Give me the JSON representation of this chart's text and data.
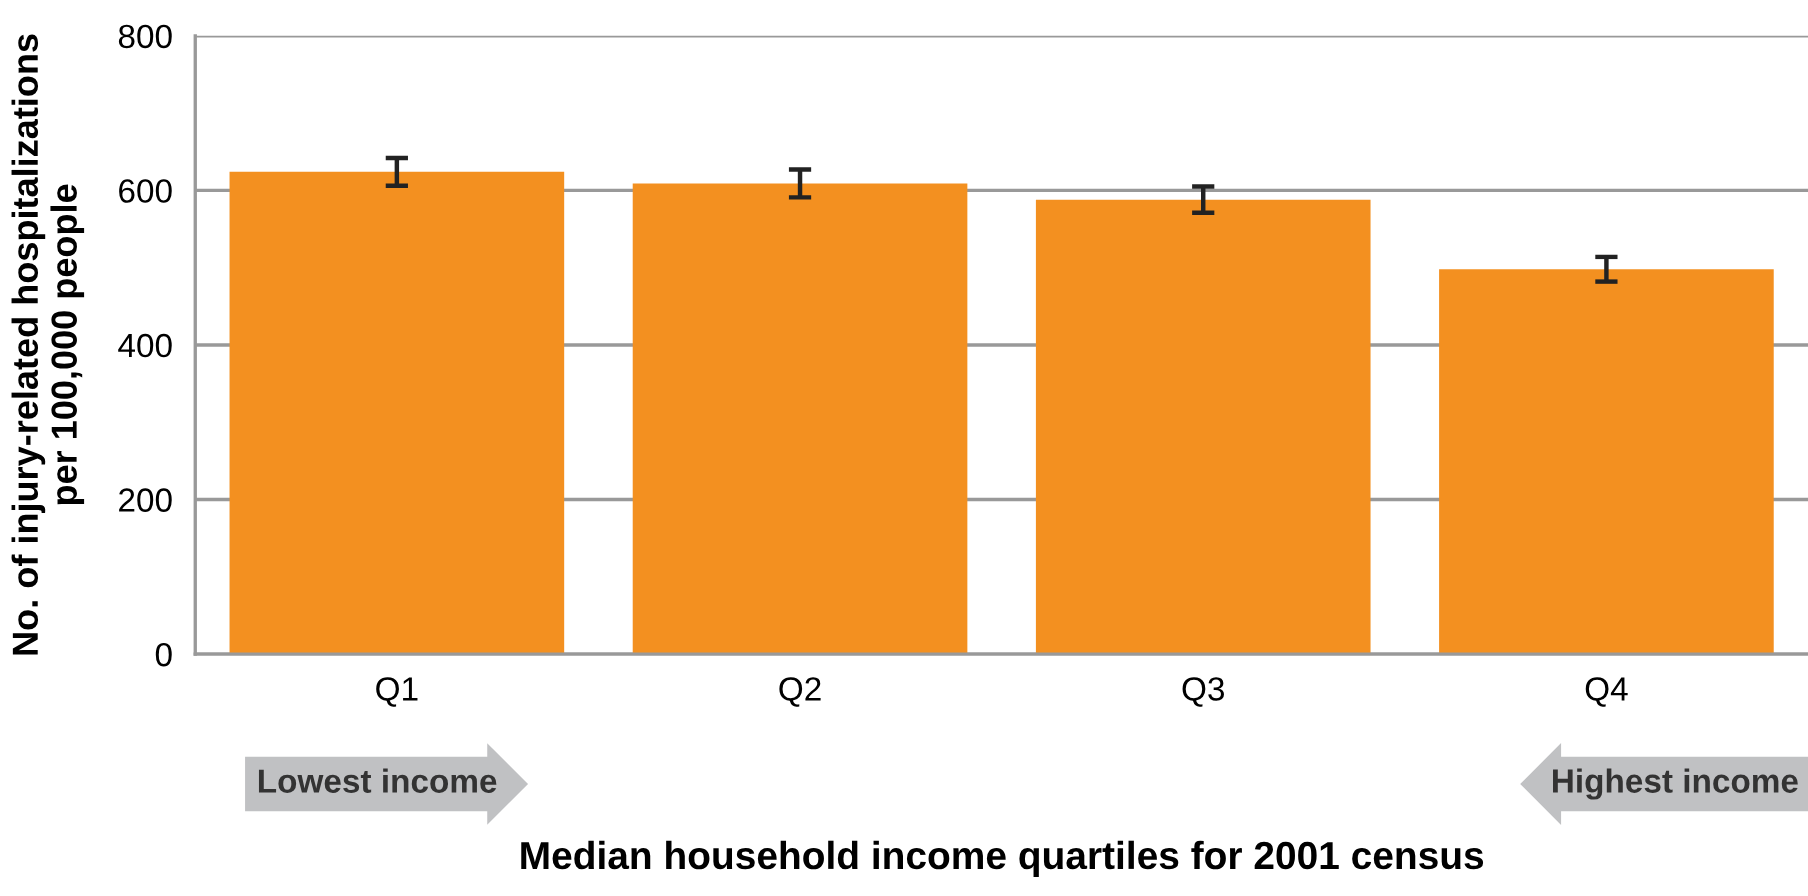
{
  "chart_data": {
    "type": "bar",
    "categories": [
      "Q1",
      "Q2",
      "Q3",
      "Q4"
    ],
    "values": [
      624,
      609,
      588,
      498
    ],
    "errors": [
      18,
      18,
      17,
      16
    ],
    "color": "#f39020",
    "ylim": [
      0,
      800
    ],
    "yticks": [
      0,
      200,
      400,
      600,
      800
    ],
    "grid": "y",
    "xlabel": "Median household income quartiles for 2001 census",
    "ylabel": "No. of injury-related hospitalizations\nper 100,000 people",
    "annotations": [
      "Lowest income",
      "Highest income"
    ]
  }
}
